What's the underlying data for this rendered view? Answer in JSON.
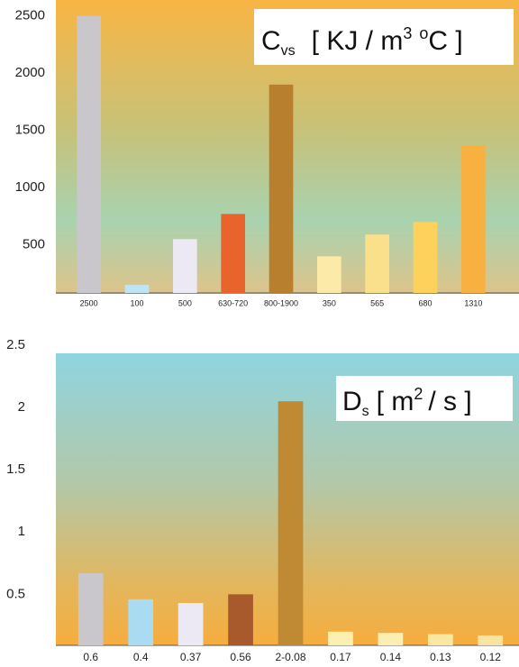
{
  "chart_data": [
    {
      "type": "bar",
      "title_parts": [
        "C",
        "vs",
        "[ KJ / m",
        "3",
        "o",
        "C ]"
      ],
      "categories": [
        "2500",
        "100",
        "500",
        "630-720",
        "800-1900",
        "350",
        "565",
        "680",
        "1310"
      ],
      "values": [
        2500,
        150,
        550,
        770,
        1900,
        400,
        590,
        700,
        1370
      ],
      "colors": [
        "#c9c6cc",
        "#bfe4f4",
        "#ece8f4",
        "#e8642c",
        "#b8802e",
        "#fbeaa8",
        "#fbe08c",
        "#fcd25c",
        "#f8b040"
      ],
      "ylim": [
        80,
        2600
      ],
      "yticks": [
        500,
        1000,
        1500,
        2000,
        2500
      ]
    },
    {
      "type": "bar",
      "title_parts": [
        "D",
        "s",
        "[ m",
        "2",
        "/ s ]"
      ],
      "categories": [
        "0.6",
        "0.4",
        "0.37",
        "0.56",
        "2-0.08",
        "0.17",
        "0.14",
        "0.13",
        "0.12"
      ],
      "values": [
        0.67,
        0.46,
        0.43,
        0.5,
        2.05,
        0.2,
        0.19,
        0.18,
        0.17
      ],
      "colors": [
        "#c9c6cc",
        "#a9dcf2",
        "#ece8f4",
        "#a85a2c",
        "#c08a34",
        "#fbf0b0",
        "#fbeeb0",
        "#fbe8a0",
        "#fae4a0"
      ],
      "ylim": [
        0.09,
        2.5
      ],
      "yticks": [
        0.5,
        1,
        1.5,
        2,
        2.5
      ]
    }
  ]
}
